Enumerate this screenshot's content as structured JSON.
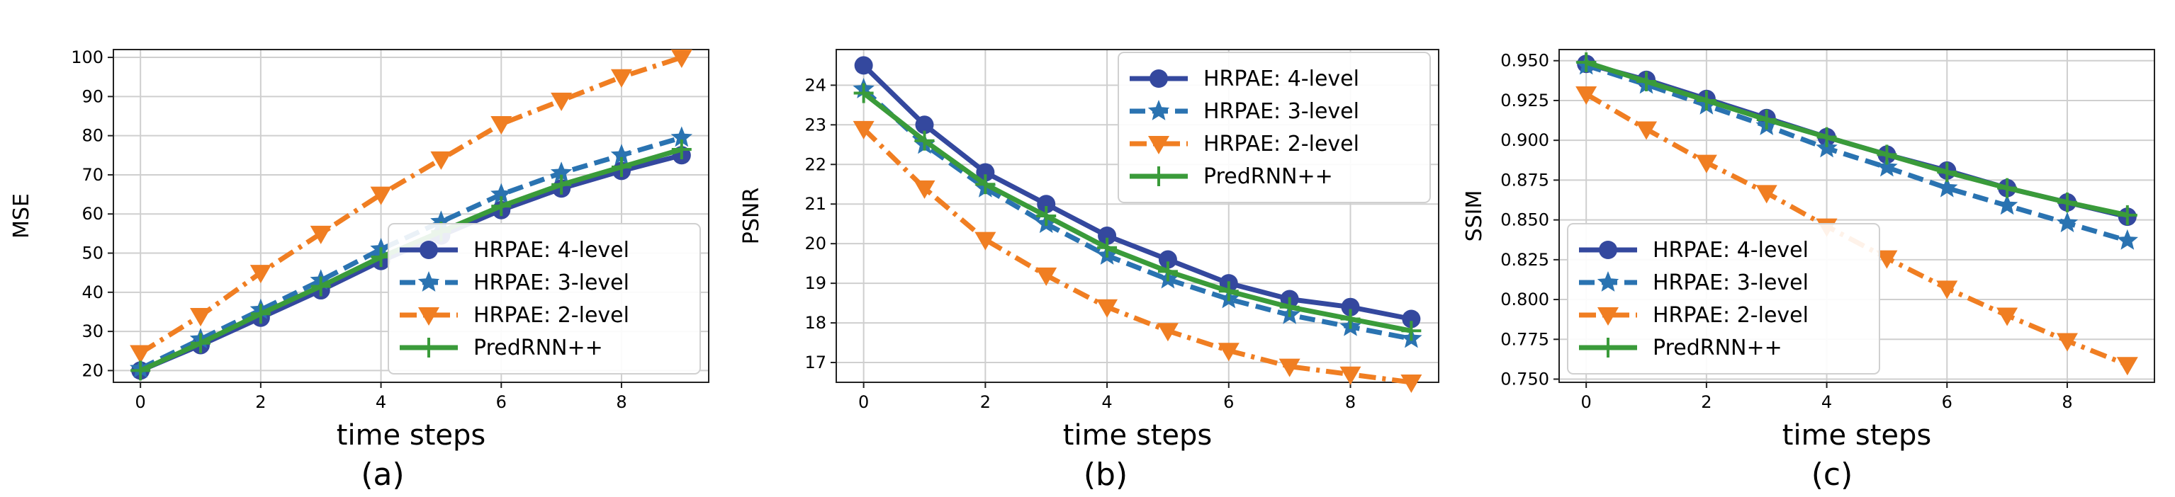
{
  "figure": {
    "panels": [
      "(a)",
      "(b)",
      "(c)"
    ]
  },
  "chart_data": [
    {
      "type": "line",
      "panel_label": "(a)",
      "xlabel": "time steps",
      "ylabel": "MSE",
      "x": [
        0,
        1,
        2,
        3,
        4,
        5,
        6,
        7,
        8,
        9
      ],
      "xlim": [
        -0.45,
        9.45
      ],
      "ylim": [
        17,
        102
      ],
      "xticks": [
        0,
        2,
        4,
        6,
        8
      ],
      "yticks": [
        20,
        30,
        40,
        50,
        60,
        70,
        80,
        90,
        100
      ],
      "tick_decimals": 0,
      "grid": true,
      "legend_position": "lower-right",
      "series": [
        {
          "name": "HRPAE: 4-level",
          "color": "#34489e",
          "marker": "circle",
          "linestyle": "solid",
          "values": [
            20.0,
            26.5,
            33.5,
            40.5,
            48.0,
            54.5,
            61.0,
            66.5,
            71.0,
            75.0
          ]
        },
        {
          "name": "HRPAE: 3-level",
          "color": "#2a73b1",
          "marker": "star",
          "linestyle": "dashed",
          "values": [
            20.5,
            28.0,
            35.5,
            43.0,
            51.0,
            58.0,
            65.0,
            70.5,
            75.0,
            79.5
          ]
        },
        {
          "name": "HRPAE: 2-level",
          "color": "#f07e22",
          "marker": "triangle-down",
          "linestyle": "dashdot",
          "values": [
            24.5,
            34.0,
            45.0,
            55.0,
            65.0,
            74.0,
            83.0,
            89.0,
            95.0,
            100.0
          ]
        },
        {
          "name": "PredRNN++",
          "color": "#3a9b3a",
          "marker": "plus",
          "linestyle": "solid",
          "values": [
            20.0,
            27.0,
            34.5,
            41.5,
            49.0,
            55.5,
            62.0,
            67.5,
            72.0,
            76.5
          ]
        }
      ]
    },
    {
      "type": "line",
      "panel_label": "(b)",
      "xlabel": "time steps",
      "ylabel": "PSNR",
      "x": [
        0,
        1,
        2,
        3,
        4,
        5,
        6,
        7,
        8,
        9
      ],
      "xlim": [
        -0.45,
        9.45
      ],
      "ylim": [
        16.5,
        24.9
      ],
      "xticks": [
        0,
        2,
        4,
        6,
        8
      ],
      "yticks": [
        17,
        18,
        19,
        20,
        21,
        22,
        23,
        24
      ],
      "tick_decimals": 0,
      "grid": true,
      "legend_position": "upper-right",
      "series": [
        {
          "name": "HRPAE: 4-level",
          "color": "#34489e",
          "marker": "circle",
          "linestyle": "solid",
          "values": [
            24.5,
            23.0,
            21.8,
            21.0,
            20.2,
            19.6,
            19.0,
            18.6,
            18.4,
            18.1
          ]
        },
        {
          "name": "HRPAE: 3-level",
          "color": "#2a73b1",
          "marker": "star",
          "linestyle": "dashed",
          "values": [
            23.9,
            22.5,
            21.4,
            20.5,
            19.7,
            19.1,
            18.6,
            18.2,
            17.9,
            17.6
          ]
        },
        {
          "name": "HRPAE: 2-level",
          "color": "#f07e22",
          "marker": "triangle-down",
          "linestyle": "dashdot",
          "values": [
            22.9,
            21.4,
            20.1,
            19.2,
            18.4,
            17.8,
            17.3,
            16.9,
            16.7,
            16.5
          ]
        },
        {
          "name": "PredRNN++",
          "color": "#3a9b3a",
          "marker": "plus",
          "linestyle": "solid",
          "values": [
            23.8,
            22.6,
            21.5,
            20.7,
            19.9,
            19.3,
            18.8,
            18.4,
            18.1,
            17.8
          ]
        }
      ]
    },
    {
      "type": "line",
      "panel_label": "(c)",
      "xlabel": "time steps",
      "ylabel": "SSIM",
      "x": [
        0,
        1,
        2,
        3,
        4,
        5,
        6,
        7,
        8,
        9
      ],
      "xlim": [
        -0.45,
        9.45
      ],
      "ylim": [
        0.748,
        0.957
      ],
      "xticks": [
        0,
        2,
        4,
        6,
        8
      ],
      "yticks": [
        0.75,
        0.775,
        0.8,
        0.825,
        0.85,
        0.875,
        0.9,
        0.925,
        0.95
      ],
      "tick_decimals": 3,
      "grid": true,
      "legend_position": "lower-left",
      "series": [
        {
          "name": "HRPAE: 4-level",
          "color": "#34489e",
          "marker": "circle",
          "linestyle": "solid",
          "values": [
            0.948,
            0.938,
            0.926,
            0.914,
            0.902,
            0.891,
            0.881,
            0.87,
            0.861,
            0.852
          ]
        },
        {
          "name": "HRPAE: 3-level",
          "color": "#2a73b1",
          "marker": "star",
          "linestyle": "dashed",
          "values": [
            0.947,
            0.935,
            0.922,
            0.909,
            0.895,
            0.883,
            0.87,
            0.859,
            0.848,
            0.837
          ]
        },
        {
          "name": "HRPAE: 2-level",
          "color": "#f07e22",
          "marker": "triangle-down",
          "linestyle": "dashdot",
          "values": [
            0.929,
            0.907,
            0.886,
            0.867,
            0.846,
            0.826,
            0.807,
            0.79,
            0.774,
            0.759
          ]
        },
        {
          "name": "PredRNN++",
          "color": "#3a9b3a",
          "marker": "plus",
          "linestyle": "solid",
          "values": [
            0.949,
            0.937,
            0.925,
            0.913,
            0.902,
            0.891,
            0.88,
            0.87,
            0.861,
            0.853
          ]
        }
      ]
    }
  ]
}
